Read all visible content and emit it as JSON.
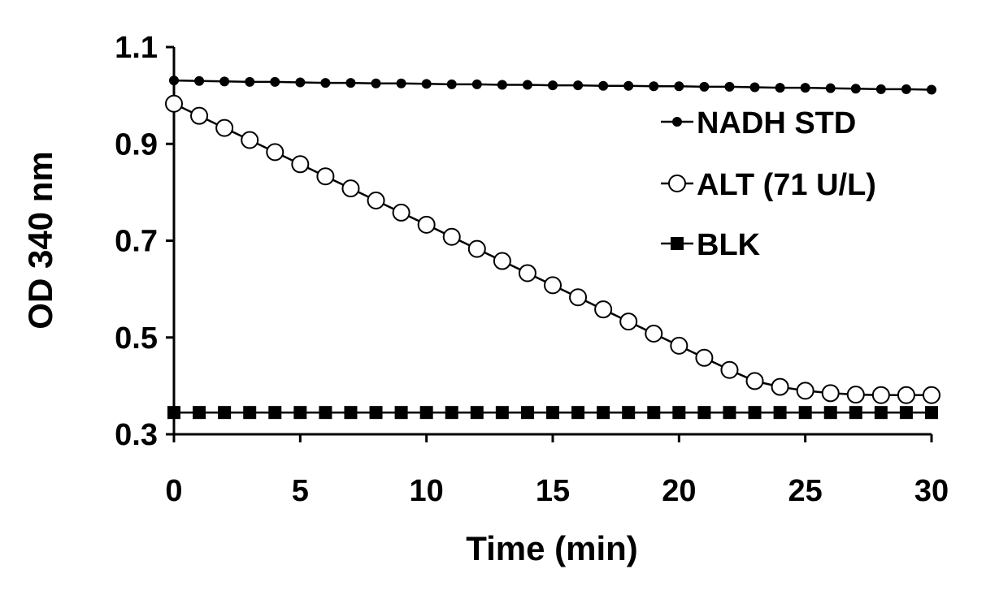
{
  "chart_data": {
    "type": "line",
    "title": "",
    "xlabel": "Time (min)",
    "ylabel": "OD 340 nm",
    "xlim": [
      0,
      30
    ],
    "ylim": [
      0.3,
      1.1
    ],
    "xticks": [
      0,
      5,
      10,
      15,
      20,
      25,
      30
    ],
    "yticks": [
      0.3,
      0.5,
      0.7,
      0.9,
      1.1
    ],
    "xtick_labels": [
      "0",
      "5",
      "10",
      "15",
      "20",
      "25",
      "30"
    ],
    "ytick_labels": [
      "0.3",
      "0.5",
      "0.7",
      "0.9",
      "1.1"
    ],
    "grid": false,
    "legend_position": "right",
    "x": [
      0,
      1,
      2,
      3,
      4,
      5,
      6,
      7,
      8,
      9,
      10,
      11,
      12,
      13,
      14,
      15,
      16,
      17,
      18,
      19,
      20,
      21,
      22,
      23,
      24,
      25,
      26,
      27,
      28,
      29,
      30
    ],
    "series": [
      {
        "name": "NADH STD",
        "marker": "small-filled-circle",
        "color": "#000000",
        "values": [
          1.031,
          1.03,
          1.029,
          1.028,
          1.028,
          1.027,
          1.026,
          1.026,
          1.025,
          1.025,
          1.024,
          1.023,
          1.023,
          1.022,
          1.022,
          1.021,
          1.021,
          1.02,
          1.02,
          1.019,
          1.019,
          1.018,
          1.018,
          1.017,
          1.016,
          1.016,
          1.015,
          1.014,
          1.013,
          1.013,
          1.012
        ]
      },
      {
        "name": "ALT (71 U/L)",
        "marker": "open-circle",
        "color": "#000000",
        "values": [
          0.983,
          0.958,
          0.933,
          0.908,
          0.883,
          0.858,
          0.833,
          0.808,
          0.783,
          0.758,
          0.733,
          0.708,
          0.683,
          0.658,
          0.633,
          0.608,
          0.583,
          0.558,
          0.533,
          0.508,
          0.483,
          0.458,
          0.433,
          0.41,
          0.398,
          0.39,
          0.385,
          0.382,
          0.381,
          0.381,
          0.381
        ]
      },
      {
        "name": "BLK",
        "marker": "filled-square",
        "color": "#000000",
        "values": [
          0.345,
          0.345,
          0.345,
          0.345,
          0.345,
          0.345,
          0.345,
          0.345,
          0.345,
          0.345,
          0.345,
          0.345,
          0.345,
          0.345,
          0.345,
          0.345,
          0.345,
          0.345,
          0.345,
          0.345,
          0.345,
          0.345,
          0.345,
          0.345,
          0.345,
          0.345,
          0.345,
          0.345,
          0.345,
          0.345,
          0.345
        ]
      }
    ]
  }
}
